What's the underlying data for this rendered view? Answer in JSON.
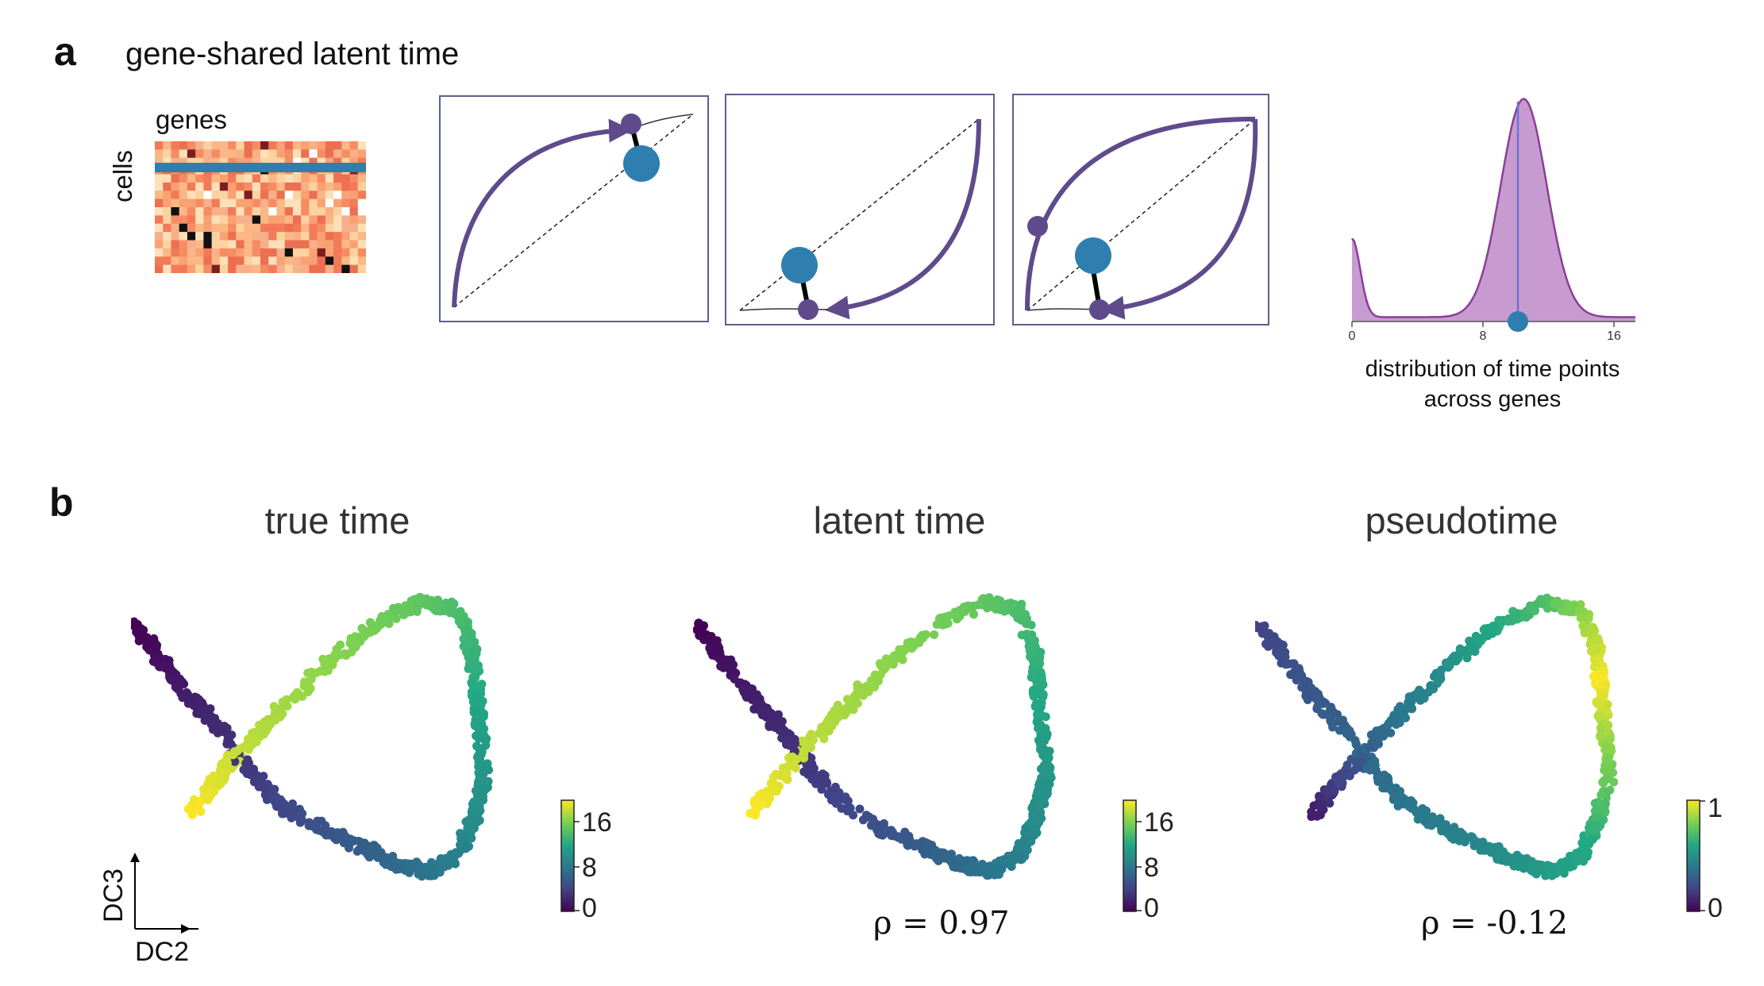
{
  "panel_a": {
    "letter": "a",
    "title": "gene-shared latent time",
    "heatmap": {
      "row_label": "cells",
      "col_label": "genes"
    },
    "histogram": {
      "x_ticks": [
        "0",
        "8",
        "16"
      ],
      "caption_line1": "distribution of time points",
      "caption_line2": "across genes"
    }
  },
  "panel_b": {
    "letter": "b",
    "axes": {
      "x_label": "DC2",
      "y_label": "DC3"
    },
    "plots": [
      {
        "title": "true time",
        "colorbar_ticks": [
          "16",
          "8",
          "0"
        ],
        "rho": ""
      },
      {
        "title": "latent time",
        "colorbar_ticks": [
          "16",
          "8",
          "0"
        ],
        "rho": "ρ = 0.97"
      },
      {
        "title": "pseudotime",
        "colorbar_ticks": [
          "1",
          "0"
        ],
        "rho": "ρ = -0.12"
      }
    ]
  },
  "colors": {
    "trajectory": "#5f4b8b",
    "observed_dot": "#2e7fb0",
    "histogram_fill": "#c79bcf",
    "histogram_line": "#8a3f96",
    "phase_box_border": "#5b5f8c"
  }
}
